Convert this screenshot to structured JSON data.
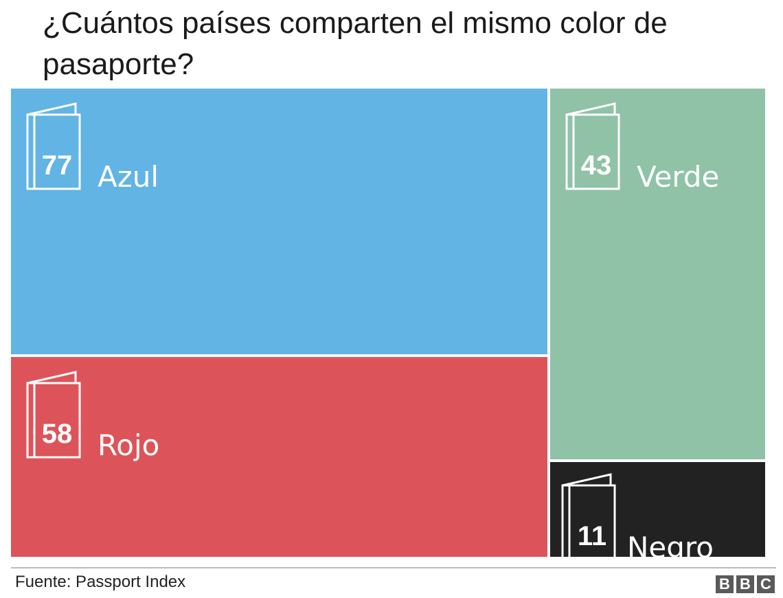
{
  "title": "¿Cuántos países comparten el mismo color de pasaporte?",
  "source": "Fuente: Passport Index",
  "logo": [
    "B",
    "B",
    "C"
  ],
  "icon": "passport-icon",
  "chart_data": {
    "type": "treemap",
    "title": "¿Cuántos países comparten el mismo color de pasaporte?",
    "categories": [
      "Azul",
      "Rojo",
      "Verde",
      "Negro"
    ],
    "values": [
      77,
      58,
      43,
      11
    ],
    "colors": [
      "#61b4e4",
      "#dc5459",
      "#8fc2a7",
      "#222222"
    ],
    "unit": "países"
  }
}
